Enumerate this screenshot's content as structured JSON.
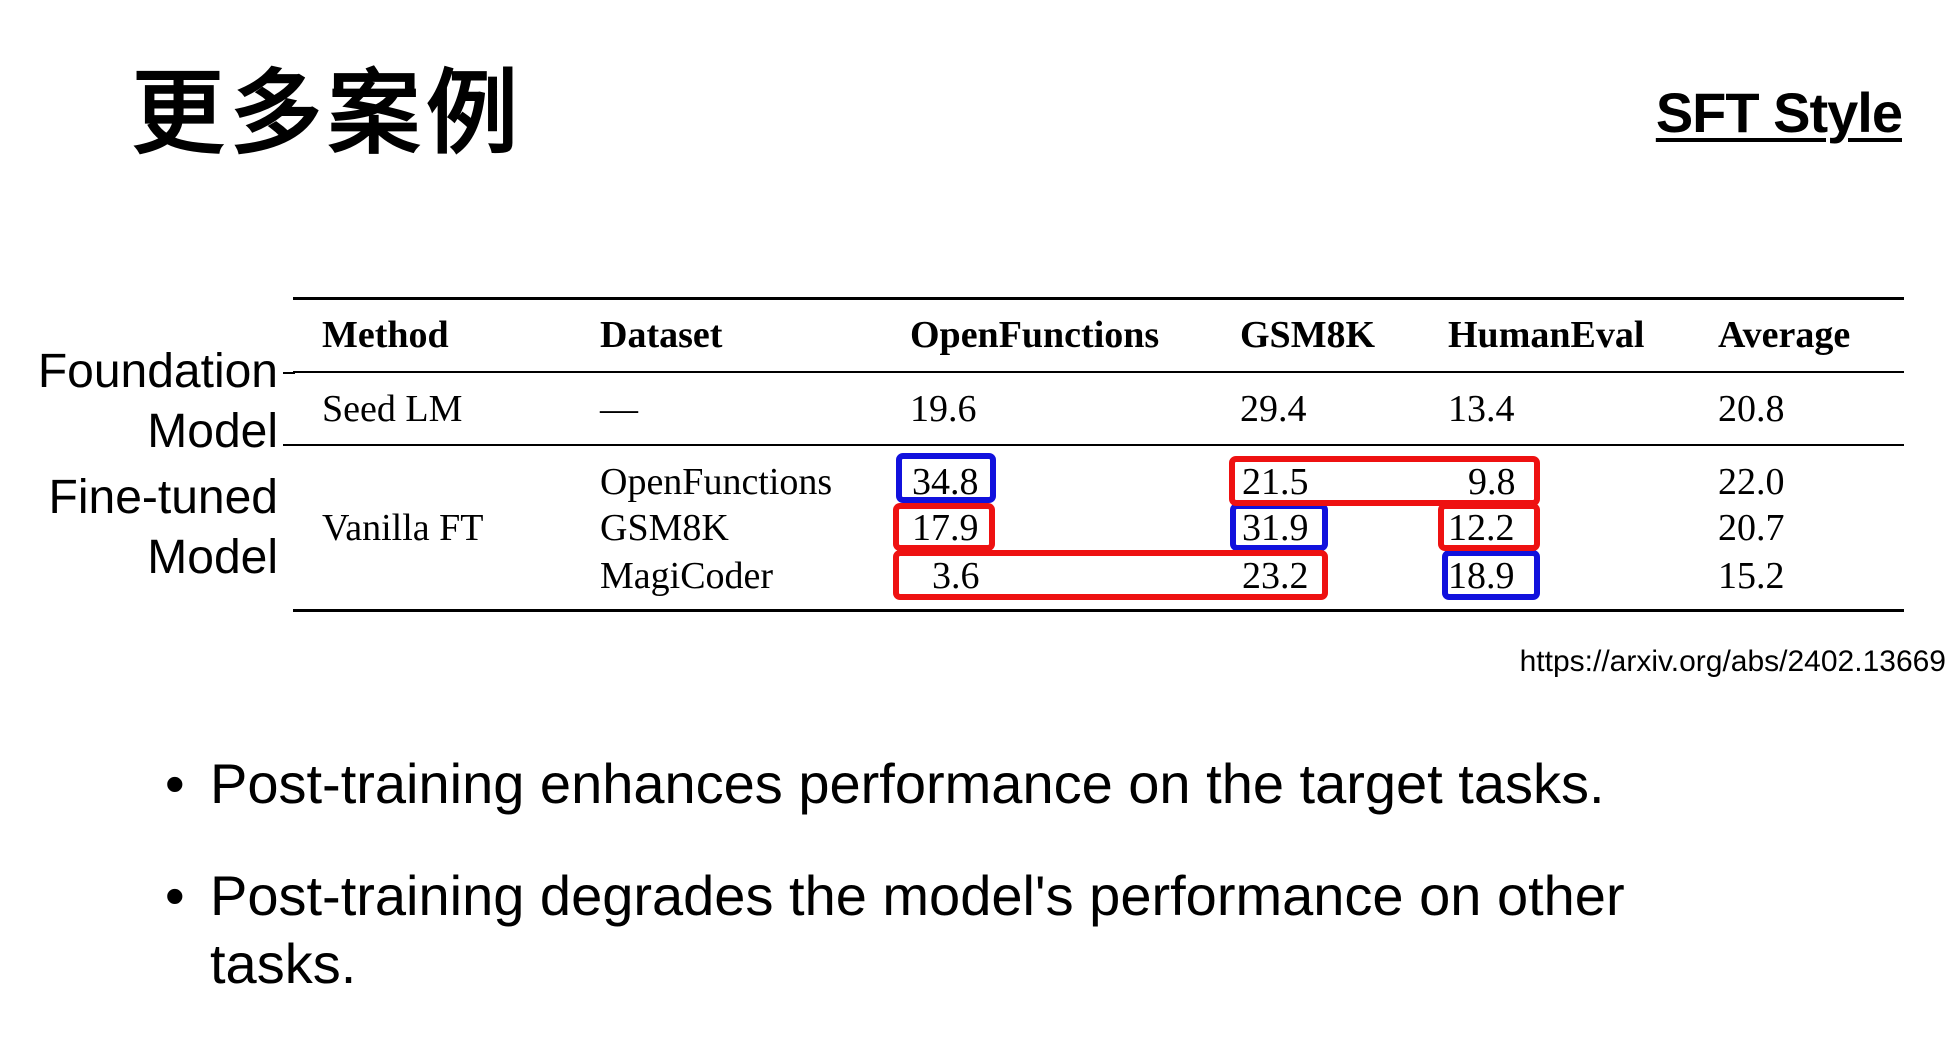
{
  "title": "更多案例",
  "tag": "SFT Style",
  "side_labels": {
    "foundation": [
      "Foundation",
      "Model"
    ],
    "finetuned": [
      "Fine-tuned",
      "Model"
    ]
  },
  "table": {
    "headers": [
      "Method",
      "Dataset",
      "OpenFunctions",
      "GSM8K",
      "HumanEval",
      "Average"
    ],
    "seed_row": {
      "method": "Seed LM",
      "dataset": "—",
      "openfunctions": "19.6",
      "gsm8k": "29.4",
      "humaneval": "13.4",
      "average": "20.8"
    },
    "vanilla_method": "Vanilla FT",
    "vanilla_rows": [
      {
        "dataset": "OpenFunctions",
        "openfunctions": "34.8",
        "gsm8k": "21.5",
        "humaneval": "9.8",
        "average": "22.0"
      },
      {
        "dataset": "GSM8K",
        "openfunctions": "17.9",
        "gsm8k": "31.9",
        "humaneval": "12.2",
        "average": "20.7"
      },
      {
        "dataset": "MagiCoder",
        "openfunctions": "3.6",
        "gsm8k": "23.2",
        "humaneval": "18.9",
        "average": "15.2"
      }
    ],
    "highlight_colors": {
      "improved": "#1111dd",
      "degraded": "#ee1111"
    }
  },
  "citation": "https://arxiv.org/abs/2402.13669",
  "bullets": [
    "Post-training enhances performance on the target tasks.",
    "Post-training degrades the model's performance on other tasks."
  ]
}
